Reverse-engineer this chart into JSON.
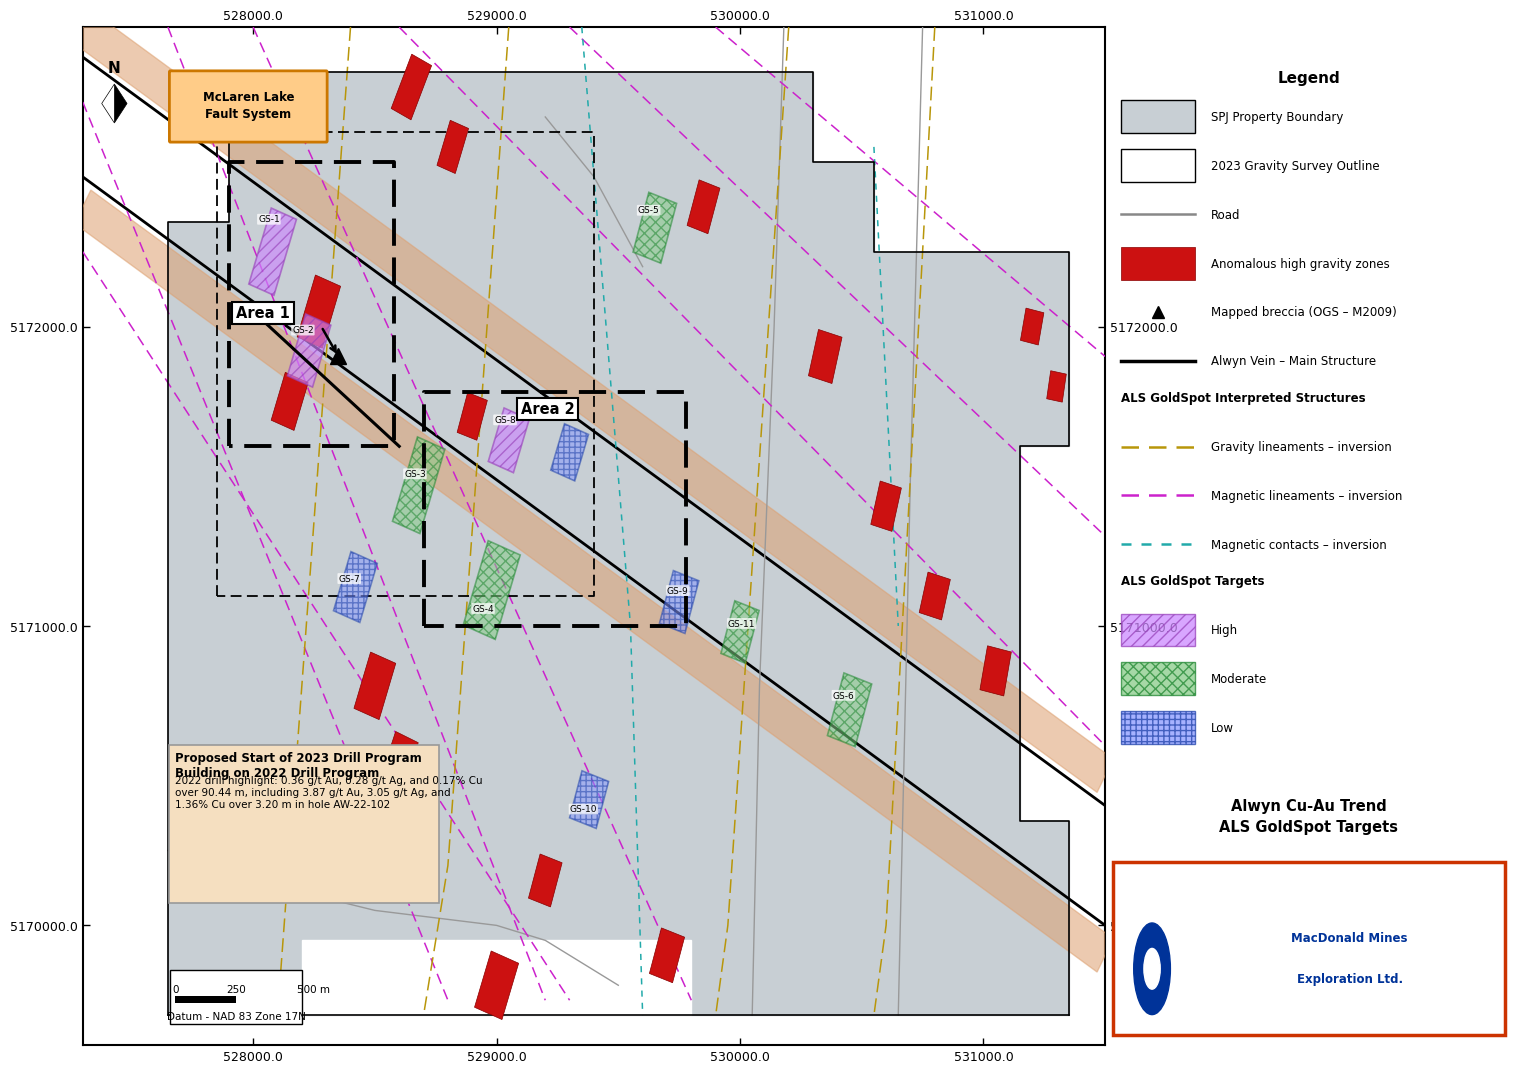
{
  "title": "Alwyn Cu-Au Trend\nALS GoldSpot Targets",
  "company": "MacDonald Mines\nExploration Ltd.",
  "datum_text": "Datum - NAD 83 Zone 17N",
  "annotation_title": "Proposed Start of 2023 Drill Program\nBuilding on 2022 Drill Program",
  "annotation_body": "2022 drill highlight: 0.36 g/t Au, 0.28 g/t Ag, and 0.17% Cu\nover 90.44 m, including 3.87 g/t Au, 3.05 g/t Ag, and\n1.36% Cu over 3.20 m in hole AW-22-102",
  "fault_label": "McLaren Lake\nFault System",
  "area1_label": "Area 1",
  "area2_label": "Area 2",
  "bg_color": "#c8cfd4",
  "xlim": [
    527300,
    531500
  ],
  "ylim": [
    5169600,
    5173000
  ],
  "xticks": [
    528000,
    529000,
    530000,
    531000
  ],
  "yticks": [
    5170000,
    5171000,
    5172000
  ],
  "legend_items": {
    "spj_boundary": "SPJ Property Boundary",
    "gravity_outline": "2023 Gravity Survey Outline",
    "road": "Road",
    "gravity_zones": "Anomalous high gravity zones",
    "breccia": "Mapped breccia (OGS – M2009)",
    "alwyn_vein": "Alwyn Vein – Main Structure",
    "als_title": "ALS GoldSpot Interpreted Structures",
    "gravity_lin": "Gravity lineaments – inversion",
    "magnetic_lin": "Magnetic lineaments – inversion",
    "magnetic_con": "Magnetic contacts – inversion",
    "targets_title": "ALS GoldSpot Targets",
    "high": "High",
    "moderate": "Moderate",
    "low": "Low"
  }
}
